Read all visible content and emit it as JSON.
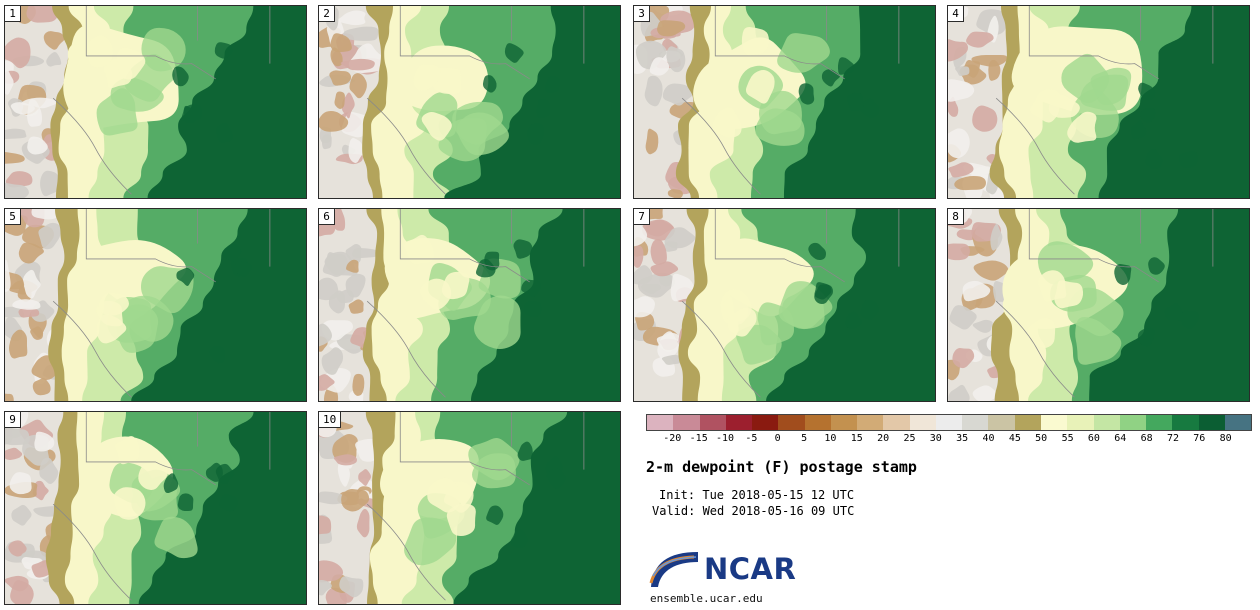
{
  "figure": {
    "title": "2-m dewpoint (F) postage stamp",
    "init_line": "Init: Tue 2018-05-15 12 UTC",
    "valid_line": "Valid: Wed 2018-05-16 09 UTC"
  },
  "panels": [
    {
      "label": "1"
    },
    {
      "label": "2"
    },
    {
      "label": "3"
    },
    {
      "label": "4"
    },
    {
      "label": "5"
    },
    {
      "label": "6"
    },
    {
      "label": "7"
    },
    {
      "label": "8"
    },
    {
      "label": "9"
    },
    {
      "label": "10"
    }
  ],
  "colorbar": {
    "units": "F",
    "ticks": [
      "-20",
      "-15",
      "-10",
      "-5",
      "0",
      "5",
      "10",
      "15",
      "20",
      "25",
      "30",
      "35",
      "40",
      "45",
      "50",
      "55",
      "60",
      "64",
      "68",
      "72",
      "76",
      "80"
    ],
    "segment_colors": [
      "#dcb3bf",
      "#c98a97",
      "#b05261",
      "#9c1f2e",
      "#8a1a10",
      "#a14d1d",
      "#b5722f",
      "#c3914f",
      "#d2ab76",
      "#e3c8a8",
      "#f0e6d8",
      "#ececec",
      "#d8d8d2",
      "#cbc4a4",
      "#b3a45c",
      "#fafad0",
      "#e8f2b8",
      "#c4e6a4",
      "#90d284",
      "#44a85e",
      "#177a40",
      "#0b5e33",
      "#467382"
    ]
  },
  "map_palette": {
    "west_base": "#e6e2db",
    "west_gray": "#cfcdc8",
    "west_pink": "#d4aba3",
    "west_tan": "#c9a478",
    "west_white": "#f2f0ec",
    "khaki": "#b3a45c",
    "cream": "#f8f7c9",
    "pale_green": "#cdeaa9",
    "light_green": "#a0d88e",
    "mid_green": "#55ac66",
    "dark_green": "#0e6434",
    "border": "#8a8a8a"
  },
  "logo": {
    "text": "NCAR",
    "url": "ensemble.ucar.edu",
    "navy": "#1a3a85",
    "orange": "#e0862e"
  }
}
